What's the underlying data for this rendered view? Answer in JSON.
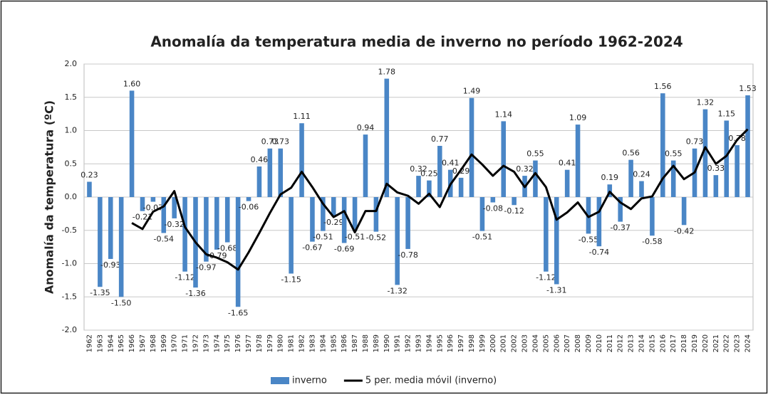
{
  "chart_data": {
    "type": "bar",
    "title": "Anomalía da temperatura media de inverno no período 1962-2024",
    "y_label": "Anomalía da temperatura (ºC)",
    "categories": [
      "1962",
      "1963",
      "1964",
      "1965",
      "1966",
      "1967",
      "1968",
      "1969",
      "1970",
      "1971",
      "1972",
      "1973",
      "1974",
      "1975",
      "1976",
      "1977",
      "1978",
      "1979",
      "1980",
      "1981",
      "1982",
      "1983",
      "1984",
      "1985",
      "1986",
      "1987",
      "1988",
      "1989",
      "1990",
      "1991",
      "1992",
      "1993",
      "1994",
      "1995",
      "1996",
      "1997",
      "1998",
      "1999",
      "2000",
      "2001",
      "2002",
      "2003",
      "2004",
      "2005",
      "2006",
      "2007",
      "2008",
      "2009",
      "2010",
      "2011",
      "2012",
      "2013",
      "2014",
      "2015",
      "2016",
      "2017",
      "2018",
      "2019",
      "2020",
      "2021",
      "2022",
      "2023",
      "2024"
    ],
    "series": [
      {
        "name": "inverno",
        "type": "bar",
        "color": "#4a86c6",
        "values": [
          0.23,
          -1.35,
          -0.93,
          -1.5,
          1.6,
          -0.21,
          -0.07,
          -0.54,
          -0.32,
          -1.12,
          -1.36,
          -0.97,
          -0.79,
          -0.68,
          -1.65,
          -0.06,
          0.46,
          0.73,
          0.73,
          -1.15,
          1.11,
          -0.67,
          -0.51,
          -0.29,
          -0.69,
          -0.51,
          0.94,
          -0.52,
          1.78,
          -1.32,
          -0.78,
          0.32,
          0.25,
          0.77,
          0.41,
          0.29,
          1.49,
          -0.51,
          -0.08,
          1.14,
          -0.12,
          0.32,
          0.55,
          -1.12,
          -1.31,
          0.41,
          1.09,
          -0.55,
          -0.74,
          0.19,
          -0.37,
          0.56,
          0.24,
          -0.58,
          1.56,
          0.55,
          -0.42,
          0.73,
          1.32,
          0.33,
          1.15,
          0.78,
          1.53
        ],
        "value_labels": [
          "0.23",
          "-1.35",
          "-0.93",
          "-1.50",
          "1.60",
          "-0.21",
          "-0.07",
          "-0.54",
          "-0.32",
          "-1.12",
          "-1.36",
          "-0.97",
          "-0.79",
          "-0.68",
          "-1.65",
          "-0.06",
          "0.46",
          "0.73",
          "0.73",
          "-1.15",
          "1.11",
          "-0.67",
          "-0.51",
          "-0.29",
          "-0.69",
          "-0.51",
          "0.94",
          "-0.52",
          "1.78",
          "-1.32",
          "-0.78",
          "0.32",
          "0.25",
          "0.77",
          "0.41",
          "0.29",
          "1.49",
          "-0.51",
          "-0.08",
          "1.14",
          "-0.12",
          "0.32",
          "0.55",
          "-1.12",
          "-1.31",
          "0.41",
          "1.09",
          "-0.55",
          "-0.74",
          "0.19",
          "-0.37",
          "0.56",
          "0.24",
          "-0.58",
          "1.56",
          "0.55",
          "-0.42",
          "0.73",
          "1.32",
          "0.33",
          "1.15",
          "0.78",
          "1.53"
        ]
      },
      {
        "name": "5 per. media móvil (inverno)",
        "type": "line",
        "color": "#000000",
        "values": [
          null,
          null,
          null,
          null,
          -0.39,
          -0.48,
          -0.22,
          -0.14,
          0.09,
          -0.45,
          -0.68,
          -0.86,
          -0.91,
          -0.98,
          -1.09,
          -0.83,
          -0.54,
          -0.24,
          0.04,
          0.14,
          0.38,
          0.15,
          -0.1,
          -0.3,
          -0.21,
          -0.53,
          -0.21,
          -0.21,
          0.2,
          0.07,
          0.02,
          -0.1,
          0.05,
          -0.15,
          0.19,
          0.41,
          0.64,
          0.49,
          0.32,
          0.47,
          0.38,
          0.15,
          0.36,
          0.15,
          -0.34,
          -0.23,
          -0.08,
          -0.3,
          -0.22,
          0.08,
          -0.08,
          -0.18,
          -0.02,
          0.01,
          0.28,
          0.47,
          0.27,
          0.37,
          0.75,
          0.5,
          0.62,
          0.86,
          1.02
        ]
      }
    ],
    "ylim": [
      -2,
      2
    ],
    "yticks": [
      {
        "value": -2,
        "label": "-2.0"
      },
      {
        "value": -1.5,
        "label": "-1.5"
      },
      {
        "value": -1,
        "label": "-1.0"
      },
      {
        "value": -0.5,
        "label": "-0.5"
      },
      {
        "value": 0,
        "label": "0.0"
      },
      {
        "value": 0.5,
        "label": "0.5"
      },
      {
        "value": 1,
        "label": "1.0"
      },
      {
        "value": 1.5,
        "label": "1.5"
      },
      {
        "value": 2,
        "label": "2.0"
      }
    ],
    "grid": true,
    "legend": "bottom"
  }
}
